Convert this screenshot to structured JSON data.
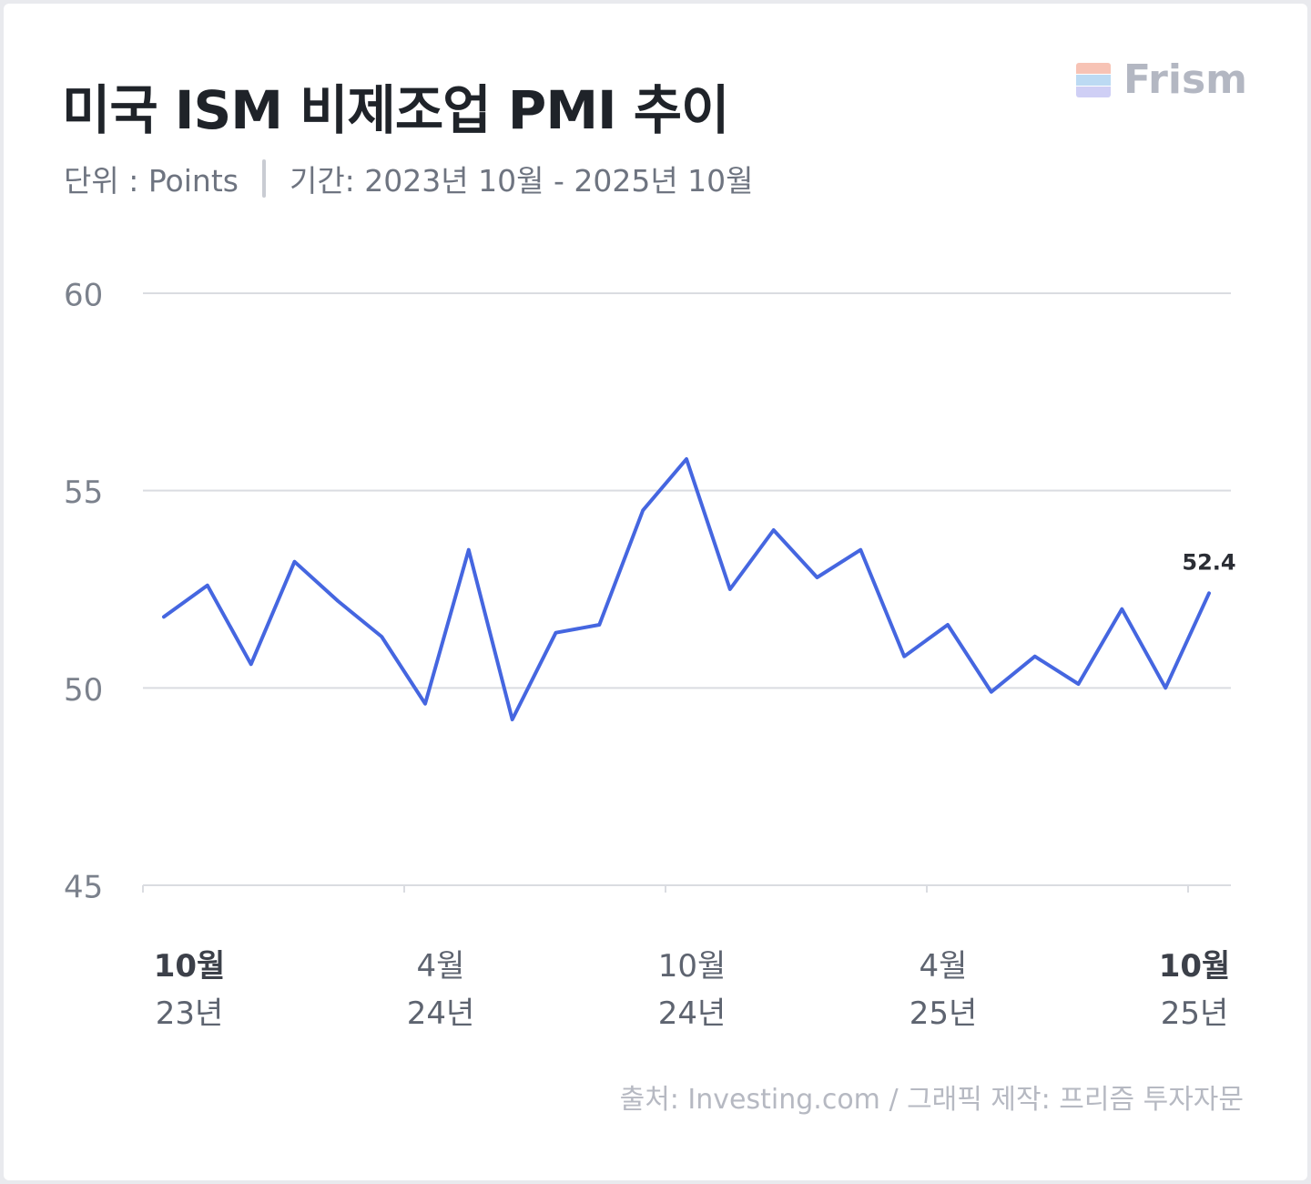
{
  "title": "미국 ISM 비제조업 PMI 추이",
  "unit_text": "단위 : Points",
  "period_text": "기간: 2023년 10월 - 2025년 10월",
  "brand": {
    "name": "Frism",
    "colors": [
      "#f7c3b5",
      "#bcdaf3",
      "#cfcff5"
    ]
  },
  "source": "출처: Investing.com / 그래픽 제작: 프리즘 투자자문",
  "chart_data": {
    "type": "line",
    "ylim": [
      45,
      60
    ],
    "yticks": [
      "60",
      "55",
      "50",
      "45"
    ],
    "ytick_values": [
      60,
      55,
      50,
      45
    ],
    "grid": true,
    "line_color": "#4566e0",
    "x_labels": [
      {
        "month": "10월",
        "year": "23년",
        "index": 0,
        "bold": true
      },
      {
        "month": "4월",
        "year": "24년",
        "index": 6,
        "bold": false
      },
      {
        "month": "10월",
        "year": "24년",
        "index": 12,
        "bold": false
      },
      {
        "month": "4월",
        "year": "25년",
        "index": 18,
        "bold": false
      },
      {
        "month": "10월",
        "year": "25년",
        "index": 24,
        "bold": true
      }
    ],
    "x": [
      "2023-10",
      "2023-11",
      "2023-12",
      "2024-01",
      "2024-02",
      "2024-03",
      "2024-04",
      "2024-05",
      "2024-06",
      "2024-07",
      "2024-08",
      "2024-09",
      "2024-10",
      "2024-11",
      "2024-12",
      "2025-01",
      "2025-02",
      "2025-03",
      "2025-04",
      "2025-05",
      "2025-06",
      "2025-07",
      "2025-08",
      "2025-09",
      "2025-10"
    ],
    "values": [
      51.8,
      52.6,
      50.6,
      53.2,
      52.2,
      51.3,
      49.6,
      53.5,
      49.2,
      51.4,
      51.6,
      54.5,
      55.8,
      52.5,
      54.0,
      52.8,
      53.5,
      50.8,
      51.6,
      49.9,
      50.8,
      50.1,
      52.0,
      50.0,
      52.4
    ],
    "end_label": "52.4"
  }
}
